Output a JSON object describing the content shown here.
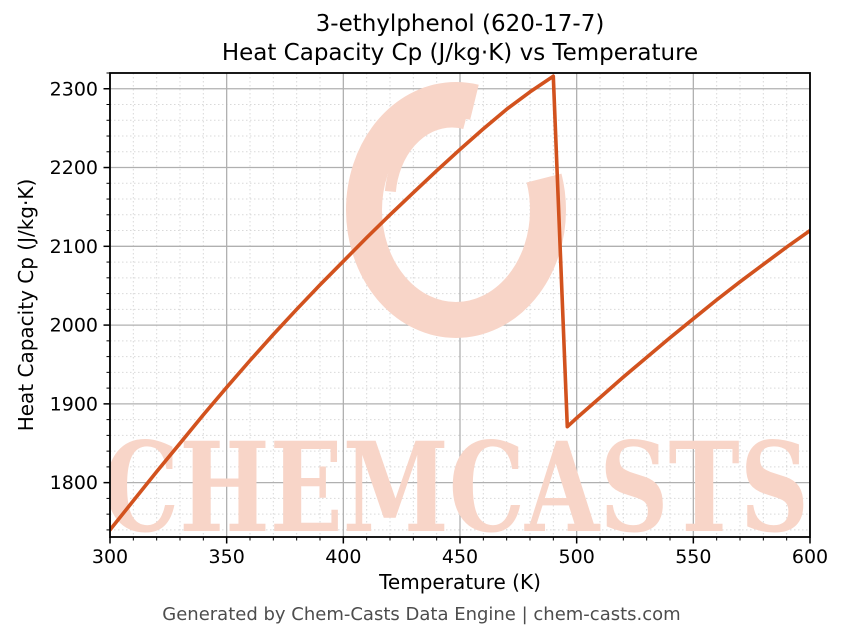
{
  "chart_data": {
    "type": "line",
    "title": "3-ethylphenol (620-17-7)\nHeat Capacity Cp (J/kg·K) vs Temperature",
    "title_line1": "3-ethylphenol (620-17-7)",
    "title_line2": "Heat Capacity Cp (J/kg·K) vs Temperature",
    "xlabel": "Temperature (K)",
    "ylabel": "Heat Capacity Cp (J/kg·K)",
    "xlim": [
      300,
      600
    ],
    "ylim": [
      1731,
      2320
    ],
    "x_ticks": [
      300,
      350,
      400,
      450,
      500,
      550,
      600
    ],
    "y_ticks": [
      1800,
      1900,
      2000,
      2100,
      2200,
      2300
    ],
    "x_minor_step": 10,
    "y_minor_step": 20,
    "grid": true,
    "legend": "none",
    "line_color": "#d2521e",
    "series": [
      {
        "name": "Heat Capacity Cp",
        "x": [
          300,
          310,
          320,
          330,
          340,
          350,
          360,
          370,
          380,
          390,
          400,
          410,
          420,
          430,
          440,
          450,
          460,
          470,
          480,
          490,
          496,
          500,
          510,
          520,
          530,
          540,
          550,
          560,
          570,
          580,
          590,
          600
        ],
        "y": [
          1740,
          1777,
          1814,
          1850,
          1886,
          1921,
          1955,
          1988,
          2020,
          2051,
          2081,
          2111,
          2140,
          2168,
          2196,
          2223,
          2249,
          2274,
          2296,
          2316,
          1871,
          1882,
          1908,
          1934,
          1959,
          1984,
          2008,
          2032,
          2055,
          2077,
          2099,
          2120
        ]
      }
    ],
    "annotations": {
      "peak_point": {
        "x": 490,
        "y": 2316
      },
      "post_drop_point": {
        "x": 496,
        "y": 1871
      }
    }
  },
  "watermark": {
    "text": "CHEMCASTS",
    "color": "#f8d5c8"
  },
  "footer": {
    "text": "Generated by Chem-Casts Data Engine | chem-casts.com"
  }
}
